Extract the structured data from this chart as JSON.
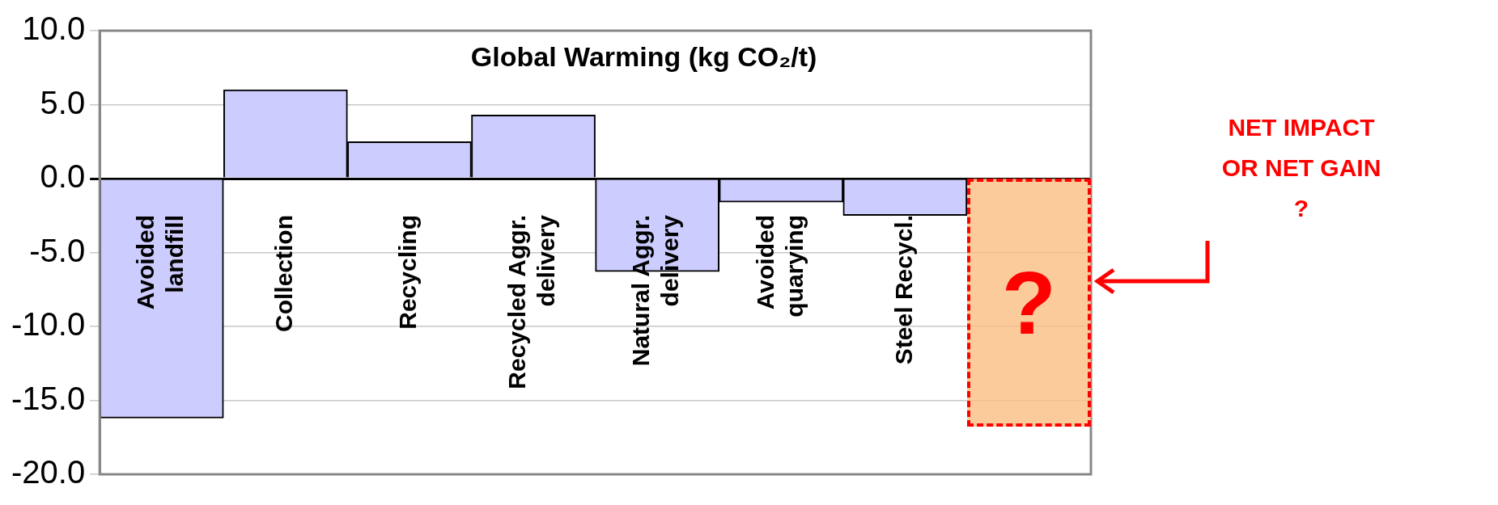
{
  "chart_data": {
    "type": "bar",
    "title": "Global Warming (kg CO₂/t)",
    "categories": [
      "Avoided landfill",
      "Collection",
      "Recycling",
      "Recycled Aggr. delivery",
      "Natural Aggr. delivery",
      "Avoided quarying",
      "Steel Recycl.",
      null
    ],
    "values": [
      -16.2,
      6.0,
      2.5,
      4.3,
      -6.3,
      -1.6,
      -2.5,
      null
    ],
    "color": "#ccccff",
    "ylim": [
      -20,
      10
    ],
    "yticks": [
      {
        "value": -20,
        "label": "-20.0"
      },
      {
        "value": -15,
        "label": "-15.0"
      },
      {
        "value": -10,
        "label": "-10.0"
      },
      {
        "value": -5,
        "label": "-5.0"
      },
      {
        "value": 0,
        "label": "0.0"
      },
      {
        "value": 5,
        "label": "5.0"
      },
      {
        "value": 10,
        "label": "10.0"
      }
    ],
    "grid": "y",
    "annotations": [
      "NET IMPACT OR NET GAIN ?",
      "?"
    ]
  }
}
